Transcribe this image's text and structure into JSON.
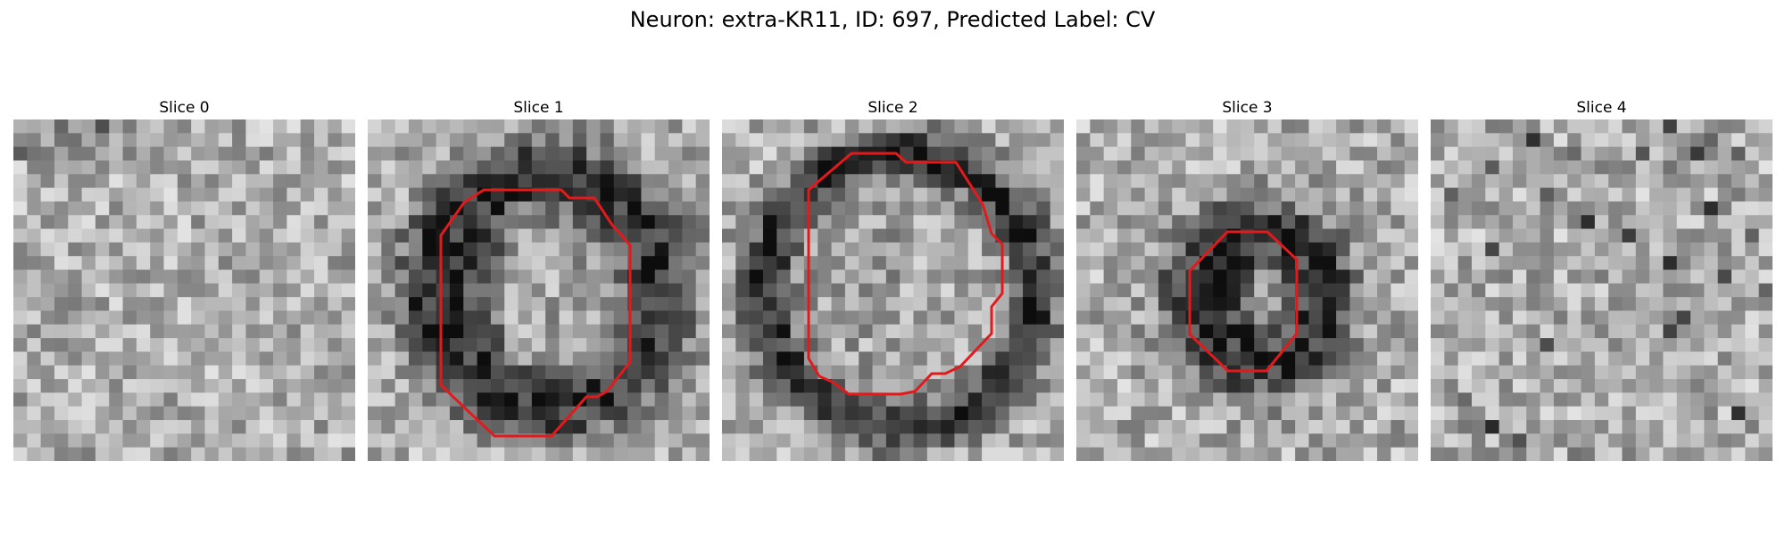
{
  "title": "Neuron: extra-KR11, ID: 697, Predicted Label: CV",
  "panels": [
    {
      "label": "Slice 0",
      "has_contour": false
    },
    {
      "label": "Slice 1",
      "has_contour": true
    },
    {
      "label": "Slice 2",
      "has_contour": true
    },
    {
      "label": "Slice 3",
      "has_contour": true
    },
    {
      "label": "Slice 4",
      "has_contour": false
    }
  ],
  "colors": {
    "contour": "#e31a1c",
    "background": "#ffffff"
  }
}
